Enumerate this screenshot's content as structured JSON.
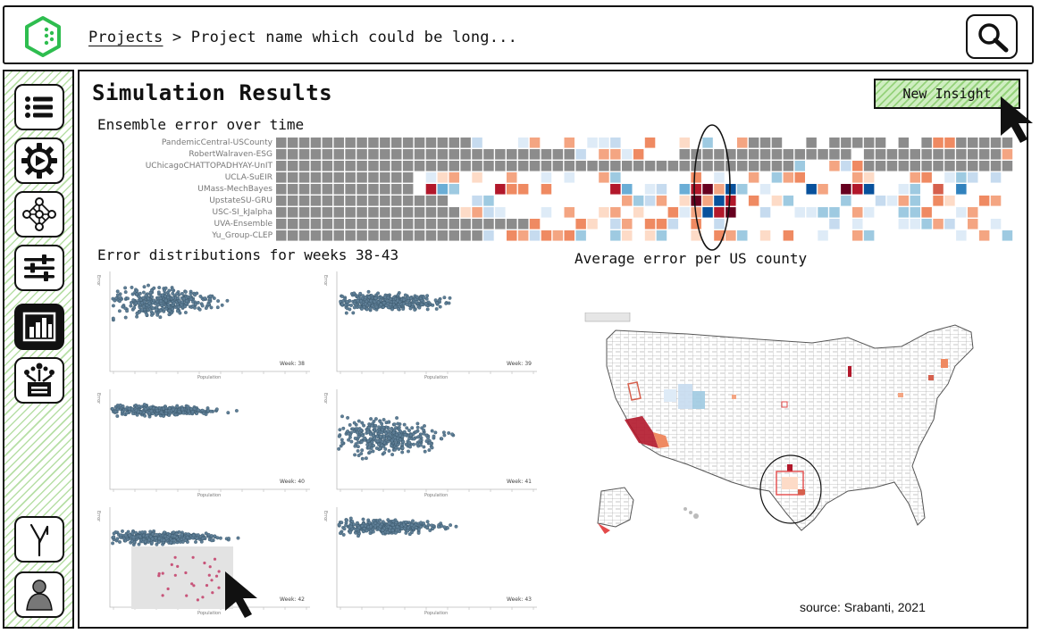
{
  "header": {
    "breadcrumb_root": "Projects",
    "breadcrumb_sep": ">",
    "breadcrumb_current": "Project name which could be long...",
    "search_icon": "search-icon",
    "logo_icon": "hexagon-logo-icon"
  },
  "sidebar": {
    "items": [
      {
        "name": "list",
        "icon": "list-icon"
      },
      {
        "name": "run",
        "icon": "gear-play-icon"
      },
      {
        "name": "network",
        "icon": "network-icon"
      },
      {
        "name": "settings",
        "icon": "sliders-icon"
      },
      {
        "name": "results",
        "icon": "bar-chart-icon",
        "active": true
      },
      {
        "name": "export",
        "icon": "hierarchy-icon"
      },
      {
        "name": "branch",
        "icon": "branch-icon"
      },
      {
        "name": "user",
        "icon": "user-icon"
      }
    ]
  },
  "main": {
    "title": "Simulation Results",
    "new_insight_label": "New Insight",
    "heatmap_title": "Ensemble error over time",
    "scatter_title": "Error distributions for weeks 38-43",
    "map_title": "Average error per US county",
    "source": "source: Srabanti, 2021"
  },
  "heatmap": {
    "models": [
      "PandemicCentral-USCounty",
      "RobertWalraven-ESG",
      "UChicagoCHATTOPADHYAY-UnIT",
      "UCLA-SuEIR",
      "UMass-MechBayes",
      "UpstateSU-GRU",
      "USC-SI_kJalpha",
      "UVA-Ensemble",
      "Yu_Group-CLEP"
    ]
  },
  "scatter": {
    "weeks": [
      "Week: 38",
      "Week: 39",
      "Week: 40",
      "Week: 41",
      "Week: 42",
      "Week: 43"
    ],
    "x_axis": "Population",
    "y_axis": "Error"
  },
  "colors": {
    "accent_green": "#95d27b",
    "logo_green": "#2ebd4f",
    "point_blue": "#5e7e96",
    "point_pink": "#c8557a",
    "map_red": "#b2182b",
    "map_blue": "#4393c3"
  }
}
